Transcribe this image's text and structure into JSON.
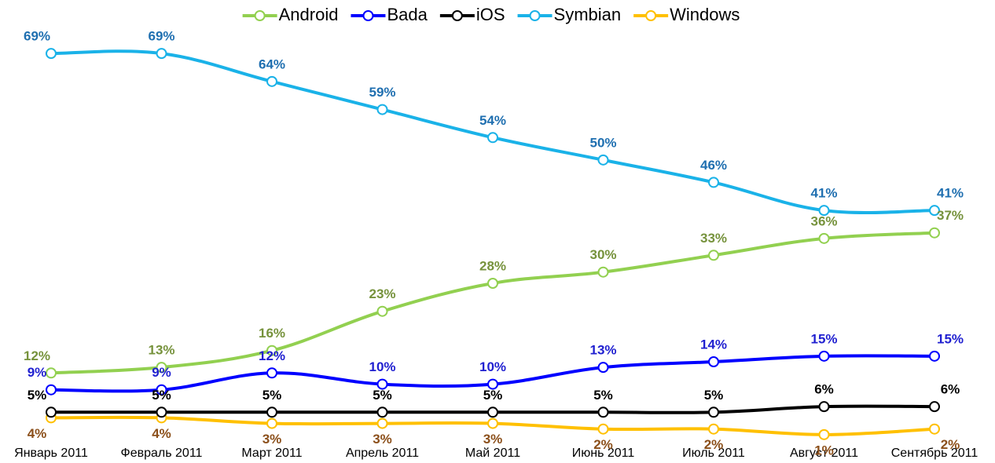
{
  "chart_data": {
    "type": "line",
    "categories": [
      "Январь 2011",
      "Февраль 2011",
      "Март 2011",
      "Апрель 2011",
      "Май 2011",
      "Июнь 2011",
      "Июль 2011",
      "Август 2011",
      "Сентябрь 2011"
    ],
    "ylim": [
      0,
      70
    ],
    "series": [
      {
        "name": "Android",
        "color": "#92d050",
        "label_color": "#76923c",
        "values": [
          12,
          13,
          16,
          23,
          28,
          30,
          33,
          36,
          37
        ],
        "value_labels": [
          "12%",
          "13%",
          "16%",
          "23%",
          "28%",
          "30%",
          "33%",
          "36%",
          "37%"
        ]
      },
      {
        "name": "Bada",
        "color": "#0000ff",
        "label_color": "#1f1fd0",
        "values": [
          9,
          9,
          12,
          10,
          10,
          13,
          14,
          15,
          15
        ],
        "value_labels": [
          "9%",
          "9%",
          "12%",
          "10%",
          "10%",
          "13%",
          "14%",
          "15%",
          "15%"
        ]
      },
      {
        "name": "iOS",
        "color": "#000000",
        "label_color": "#000000",
        "values": [
          5,
          5,
          5,
          5,
          5,
          5,
          5,
          6,
          6
        ],
        "value_labels": [
          "5%",
          "5%",
          "5%",
          "5%",
          "5%",
          "5%",
          "5%",
          "6%",
          "6%"
        ]
      },
      {
        "name": "Symbian",
        "color": "#1ab2e8",
        "label_color": "#1f6fb0",
        "values": [
          69,
          69,
          64,
          59,
          54,
          50,
          46,
          41,
          41
        ],
        "value_labels": [
          "69%",
          "69%",
          "64%",
          "59%",
          "54%",
          "50%",
          "46%",
          "41%",
          "41%"
        ]
      },
      {
        "name": "Windows",
        "color": "#ffc000",
        "label_color": "#8b4f1a",
        "values": [
          4,
          4,
          3,
          3,
          3,
          2,
          2,
          1,
          2
        ],
        "value_labels": [
          "4%",
          "4%",
          "3%",
          "3%",
          "3%",
          "2%",
          "2%",
          "1%",
          "2%"
        ]
      }
    ]
  }
}
